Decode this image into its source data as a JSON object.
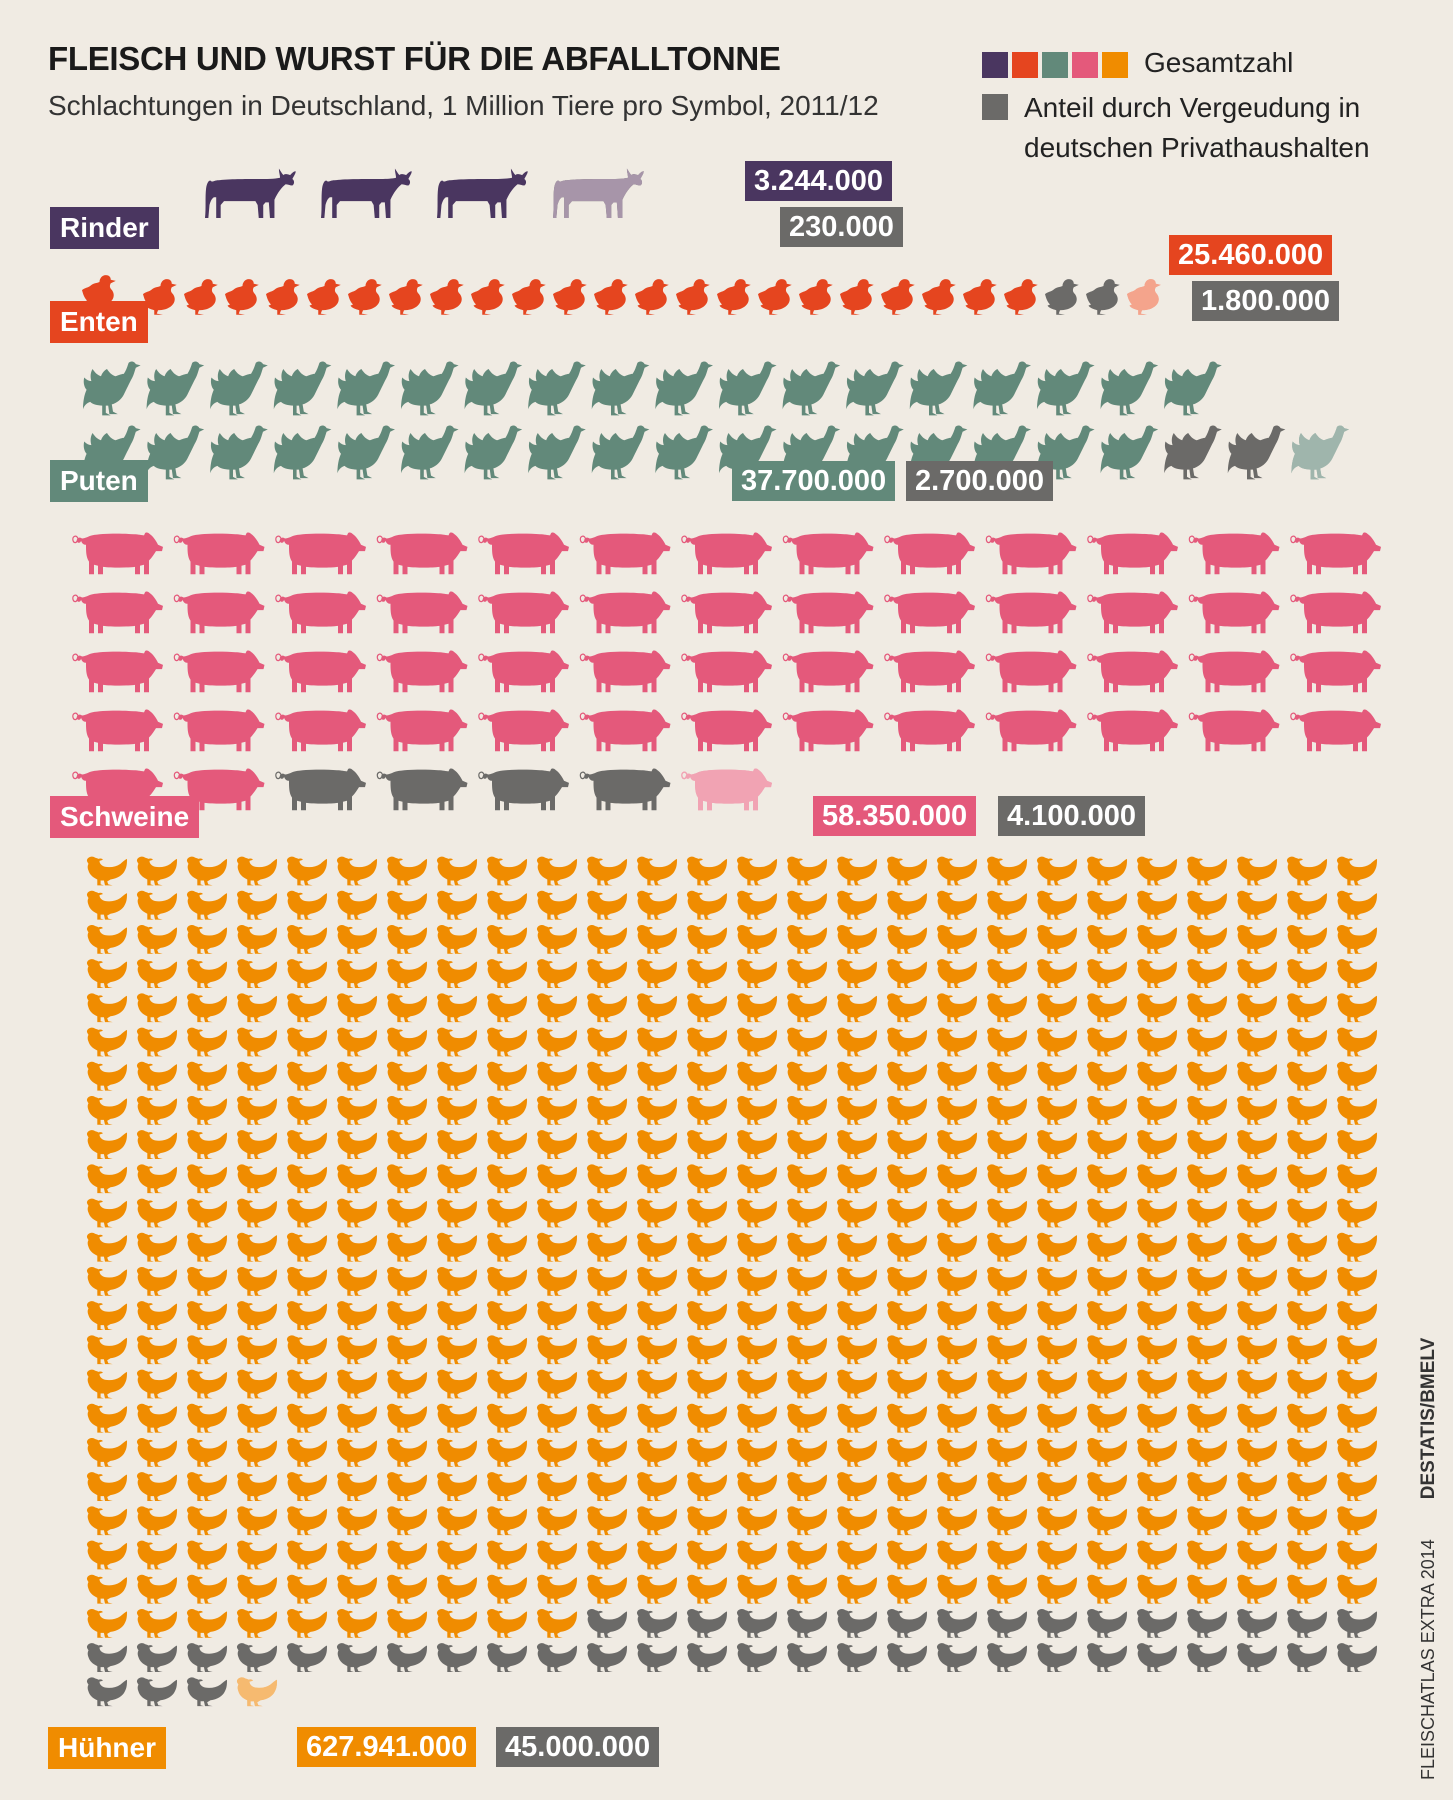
{
  "header": {
    "title": "FLEISCH UND WURST FÜR DIE ABFALLTONNE",
    "subtitle": "Schlachtungen in Deutschland, 1 Million Tiere pro Symbol, 2011/12"
  },
  "legend": {
    "total_label": "Gesamtzahl",
    "waste_label": "Anteil durch Vergeudung in deutschen Privathaushalten",
    "total_colors": [
      "#4a3660",
      "#e5451f",
      "#62897a",
      "#e4597b",
      "#f08c00"
    ],
    "waste_color": "#6b6a68"
  },
  "source": {
    "publication": "FLEISCHATLAS EXTRA 2014",
    "data_source": "DESTATIS/BMELV"
  },
  "chart_data": {
    "type": "pictogram",
    "unit": "1 Million Tiere pro Symbol",
    "series": [
      {
        "name": "Rinder",
        "total": 3244000,
        "total_label": "3.244.000",
        "waste": 230000,
        "waste_label": "230.000",
        "color": "#4a3660",
        "light": "#a795a9",
        "icon": "cow-icon"
      },
      {
        "name": "Enten",
        "total": 25460000,
        "total_label": "25.460.000",
        "waste": 1800000,
        "waste_label": "1.800.000",
        "color": "#e5451f",
        "light": "#f4a48c",
        "icon": "duck-icon"
      },
      {
        "name": "Puten",
        "total": 37700000,
        "total_label": "37.700.000",
        "waste": 2700000,
        "waste_label": "2.700.000",
        "color": "#62897a",
        "light": "#9fb5ac",
        "icon": "turkey-icon"
      },
      {
        "name": "Schweine",
        "total": 58350000,
        "total_label": "58.350.000",
        "waste": 4100000,
        "waste_label": "4.100.000",
        "color": "#e4597b",
        "light": "#f1a3b3",
        "icon": "pig-icon"
      },
      {
        "name": "Hühner",
        "total": 627941000,
        "total_label": "627.941.000",
        "waste": 45000000,
        "waste_label": "45.000.000",
        "color": "#f08c00",
        "light": "#f6ba70",
        "icon": "chicken-icon"
      }
    ]
  }
}
